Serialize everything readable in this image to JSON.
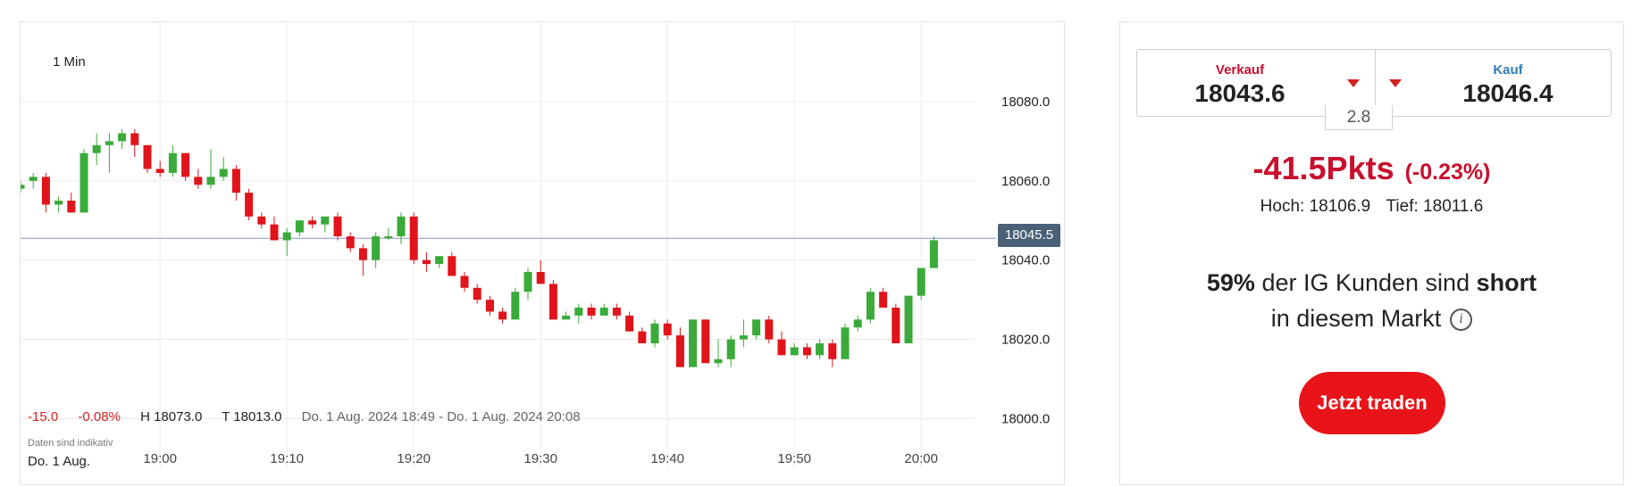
{
  "chart": {
    "interval_label": "1 Min",
    "current_price_tag": "18045.5",
    "stats": {
      "change": "-15.0",
      "change_pct": "-0.08%",
      "high": "H 18073.0",
      "low": "T 18013.0",
      "range": "Do. 1 Aug. 2024 18:49 - Do. 1 Aug. 2024 20:08"
    },
    "disclaimer": "Daten sind indikativ",
    "date_label": "Do. 1 Aug.",
    "colors": {
      "up": "#3aaa3a",
      "down": "#e0141a",
      "grid": "#ececec",
      "tag": "#4a6076"
    }
  },
  "chart_data": {
    "type": "candlestick",
    "xlabel": "",
    "ylabel": "",
    "ylim": [
      17992,
      18100
    ],
    "y_ticks": [
      "18080.0",
      "18060.0",
      "18040.0",
      "18020.0",
      "18000.0"
    ],
    "y_tick_values": [
      18080,
      18060,
      18040,
      18020,
      18000
    ],
    "x_ticks": [
      "19:00",
      "19:10",
      "19:20",
      "19:30",
      "19:40",
      "19:50",
      "20:00"
    ],
    "x_tick_minutes": [
      11,
      21,
      31,
      41,
      51,
      61,
      71
    ],
    "current_price": 18045.5,
    "candles": [
      [
        0,
        18058,
        18060,
        18057,
        18059
      ],
      [
        1,
        18060,
        18062,
        18058,
        18061
      ],
      [
        2,
        18061,
        18062,
        18052,
        18054
      ],
      [
        3,
        18054,
        18056,
        18052,
        18055
      ],
      [
        4,
        18055,
        18057,
        18052,
        18052
      ],
      [
        5,
        18052,
        18068,
        18052,
        18067
      ],
      [
        6,
        18067,
        18072,
        18064,
        18069
      ],
      [
        7,
        18069,
        18072,
        18062,
        18070
      ],
      [
        8,
        18070,
        18073,
        18068,
        18072
      ],
      [
        9,
        18072,
        18073,
        18066,
        18069
      ],
      [
        10,
        18069,
        18069,
        18062,
        18063
      ],
      [
        11,
        18063,
        18065,
        18061,
        18062
      ],
      [
        12,
        18062,
        18069,
        18061,
        18067
      ],
      [
        13,
        18067,
        18067,
        18060,
        18061
      ],
      [
        14,
        18061,
        18063,
        18058,
        18059
      ],
      [
        15,
        18059,
        18068,
        18058,
        18061
      ],
      [
        16,
        18061,
        18066,
        18060,
        18063
      ],
      [
        17,
        18063,
        18064,
        18055,
        18057
      ],
      [
        18,
        18057,
        18058,
        18050,
        18051
      ],
      [
        19,
        18051,
        18052,
        18048,
        18049
      ],
      [
        20,
        18049,
        18051,
        18045,
        18045
      ],
      [
        21,
        18045,
        18048,
        18041,
        18047
      ],
      [
        22,
        18047,
        18050,
        18046,
        18050
      ],
      [
        23,
        18050,
        18051,
        18048,
        18049
      ],
      [
        24,
        18049,
        18051,
        18047,
        18051
      ],
      [
        25,
        18051,
        18052,
        18045,
        18046
      ],
      [
        26,
        18046,
        18047,
        18042,
        18043
      ],
      [
        27,
        18043,
        18044,
        18036,
        18040
      ],
      [
        28,
        18040,
        18047,
        18038,
        18046
      ],
      [
        29,
        18046,
        18048,
        18045,
        18046
      ],
      [
        30,
        18046,
        18052,
        18044,
        18051
      ],
      [
        31,
        18051,
        18052,
        18039,
        18040
      ],
      [
        32,
        18040,
        18042,
        18037,
        18039
      ],
      [
        33,
        18039,
        18041,
        18038,
        18041
      ],
      [
        34,
        18041,
        18042,
        18036,
        18036
      ],
      [
        35,
        18036,
        18037,
        18032,
        18033
      ],
      [
        36,
        18033,
        18034,
        18029,
        18030
      ],
      [
        37,
        18030,
        18031,
        18026,
        18027
      ],
      [
        38,
        18027,
        18028,
        18024,
        18025
      ],
      [
        39,
        18025,
        18033,
        18025,
        18032
      ],
      [
        40,
        18032,
        18038,
        18030,
        18037
      ],
      [
        41,
        18037,
        18040,
        18034,
        18034
      ],
      [
        42,
        18034,
        18035,
        18025,
        18025
      ],
      [
        43,
        18025,
        18027,
        18025,
        18026
      ],
      [
        44,
        18026,
        18029,
        18024,
        18028
      ],
      [
        45,
        18028,
        18029,
        18025,
        18026
      ],
      [
        46,
        18026,
        18029,
        18026,
        18028
      ],
      [
        47,
        18028,
        18029,
        18025,
        18026
      ],
      [
        48,
        18026,
        18027,
        18022,
        18022
      ],
      [
        49,
        18022,
        18023,
        18019,
        18019
      ],
      [
        50,
        18019,
        18025,
        18018,
        18024
      ],
      [
        51,
        18024,
        18025,
        18020,
        18021
      ],
      [
        52,
        18021,
        18023,
        18013,
        18013
      ],
      [
        53,
        18013,
        18025,
        18013,
        18025
      ],
      [
        54,
        18025,
        18025,
        18014,
        18014
      ],
      [
        55,
        18014,
        18020,
        18013,
        18015
      ],
      [
        56,
        18015,
        18021,
        18013,
        18020
      ],
      [
        57,
        18020,
        18025,
        18018,
        18021
      ],
      [
        58,
        18021,
        18025,
        18020,
        18025
      ],
      [
        59,
        18025,
        18026,
        18019,
        18020
      ],
      [
        60,
        18020,
        18022,
        18016,
        18016
      ],
      [
        61,
        18016,
        18019,
        18016,
        18018
      ],
      [
        62,
        18018,
        18019,
        18015,
        18016
      ],
      [
        63,
        18016,
        18020,
        18015,
        18019
      ],
      [
        64,
        18019,
        18020,
        18013,
        18015
      ],
      [
        65,
        18015,
        18024,
        18015,
        18023
      ],
      [
        66,
        18023,
        18026,
        18022,
        18025
      ],
      [
        67,
        18025,
        18033,
        18024,
        18032
      ],
      [
        68,
        18032,
        18033,
        18028,
        18028
      ],
      [
        69,
        18028,
        18029,
        18019,
        18019
      ],
      [
        70,
        18019,
        18031,
        18019,
        18031
      ],
      [
        71,
        18031,
        18038,
        18030,
        18038
      ],
      [
        72,
        18038,
        18046,
        18038,
        18045
      ]
    ]
  },
  "trade": {
    "sell_label": "Verkauf",
    "sell_value": "18043.6",
    "buy_label": "Kauf",
    "buy_value": "18046.4",
    "spread": "2.8",
    "change_pts": "-41.5Pkts",
    "change_pct": "(-0.23%)",
    "high": "Hoch: 18106.9",
    "low": "Tief: 18011.6",
    "sentiment_pct": "59%",
    "sentiment_mid": " der IG Kunden sind ",
    "sentiment_dir": "short",
    "sentiment_line2": "in diesem Markt",
    "info_icon": "i",
    "cta_label": "Jetzt traden",
    "colors": {
      "sell": "#c8102e",
      "buy": "#2f7bb7",
      "cta": "#e8141a"
    }
  }
}
